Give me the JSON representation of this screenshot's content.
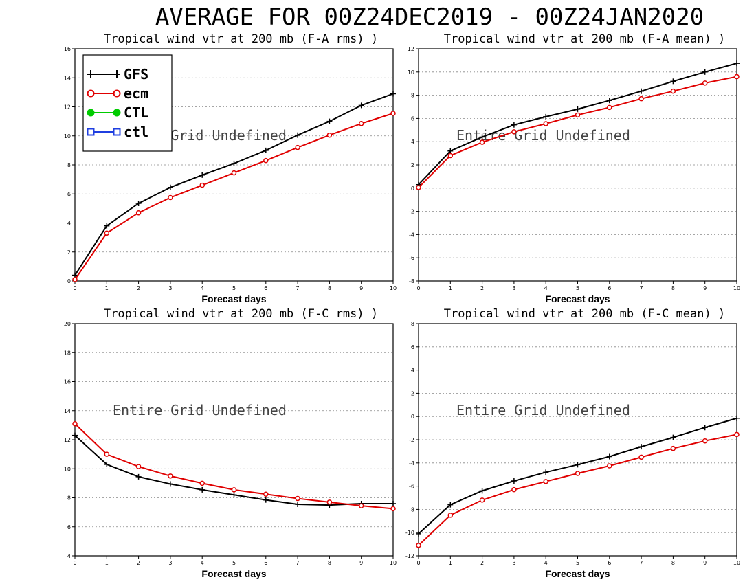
{
  "figure_title": "AVERAGE FOR 00Z24DEC2019 - 00Z24JAN2020",
  "legend": [
    {
      "label": "GFS",
      "color": "#000000",
      "marker": "plus"
    },
    {
      "label": "ecm",
      "color": "#e00000",
      "marker": "circle"
    },
    {
      "label": "CTL",
      "color": "#00cc00",
      "marker": "dot"
    },
    {
      "label": "ctl",
      "color": "#1f3fe0",
      "marker": "square"
    }
  ],
  "chart_data": [
    {
      "type": "line",
      "title": "Tropical wind vtr at 200 mb (F-A rms) )",
      "xlabel": "Forecast days",
      "ylabel": "",
      "annotation": "Entire Grid Undefined",
      "x": [
        0,
        1,
        2,
        3,
        4,
        5,
        6,
        7,
        8,
        9,
        10
      ],
      "xlim": [
        0,
        10
      ],
      "ylim": [
        0,
        16
      ],
      "yticks": [
        0,
        2,
        4,
        6,
        8,
        10,
        12,
        14,
        16
      ],
      "grid": true,
      "legend": "top-left",
      "series": [
        {
          "name": "GFS",
          "values": [
            0.4,
            3.8,
            5.35,
            6.45,
            7.3,
            8.1,
            9.0,
            10.05,
            11.0,
            12.1,
            12.9
          ]
        },
        {
          "name": "ecm",
          "values": [
            0.1,
            3.3,
            4.7,
            5.75,
            6.6,
            7.45,
            8.3,
            9.2,
            10.05,
            10.85,
            11.55
          ]
        }
      ]
    },
    {
      "type": "line",
      "title": "Tropical wind vtr at 200 mb (F-A mean) )",
      "xlabel": "Forecast days",
      "ylabel": "",
      "annotation": "Entire Grid Undefined",
      "x": [
        0,
        1,
        2,
        3,
        4,
        5,
        6,
        7,
        8,
        9,
        10
      ],
      "xlim": [
        0,
        10
      ],
      "ylim": [
        -8,
        12
      ],
      "yticks": [
        -8,
        -6,
        -4,
        -2,
        0,
        2,
        4,
        6,
        8,
        10,
        12
      ],
      "grid": true,
      "series": [
        {
          "name": "GFS",
          "values": [
            0.3,
            3.2,
            4.4,
            5.45,
            6.15,
            6.8,
            7.55,
            8.35,
            9.2,
            10.0,
            10.75
          ]
        },
        {
          "name": "ecm",
          "values": [
            0.05,
            2.8,
            3.95,
            4.85,
            5.55,
            6.3,
            6.95,
            7.7,
            8.35,
            9.05,
            9.6
          ]
        }
      ]
    },
    {
      "type": "line",
      "title": "Tropical wind vtr at 200 mb (F-C rms) )",
      "xlabel": "Forecast days",
      "ylabel": "",
      "annotation": "Entire Grid Undefined",
      "x": [
        0,
        1,
        2,
        3,
        4,
        5,
        6,
        7,
        8,
        9,
        10
      ],
      "xlim": [
        0,
        10
      ],
      "ylim": [
        4,
        20
      ],
      "yticks": [
        4,
        6,
        8,
        10,
        12,
        14,
        16,
        18,
        20
      ],
      "grid": true,
      "series": [
        {
          "name": "GFS",
          "values": [
            12.3,
            10.3,
            9.45,
            8.95,
            8.55,
            8.2,
            7.85,
            7.55,
            7.5,
            7.6,
            7.6
          ]
        },
        {
          "name": "ecm",
          "values": [
            13.1,
            11.0,
            10.15,
            9.5,
            9.0,
            8.55,
            8.25,
            7.95,
            7.7,
            7.45,
            7.25
          ]
        }
      ]
    },
    {
      "type": "line",
      "title": "Tropical wind vtr at 200 mb (F-C mean) )",
      "xlabel": "Forecast days",
      "ylabel": "",
      "annotation": "Entire Grid Undefined",
      "x": [
        0,
        1,
        2,
        3,
        4,
        5,
        6,
        7,
        8,
        9,
        10
      ],
      "xlim": [
        0,
        10
      ],
      "ylim": [
        -12,
        8
      ],
      "yticks": [
        -12,
        -10,
        -8,
        -6,
        -4,
        -2,
        0,
        2,
        4,
        6,
        8
      ],
      "grid": true,
      "series": [
        {
          "name": "GFS",
          "values": [
            -10.1,
            -7.6,
            -6.4,
            -5.55,
            -4.8,
            -4.15,
            -3.45,
            -2.6,
            -1.8,
            -0.95,
            -0.15
          ]
        },
        {
          "name": "ecm",
          "values": [
            -11.1,
            -8.5,
            -7.2,
            -6.3,
            -5.6,
            -4.9,
            -4.25,
            -3.5,
            -2.75,
            -2.1,
            -1.55
          ]
        }
      ]
    }
  ]
}
